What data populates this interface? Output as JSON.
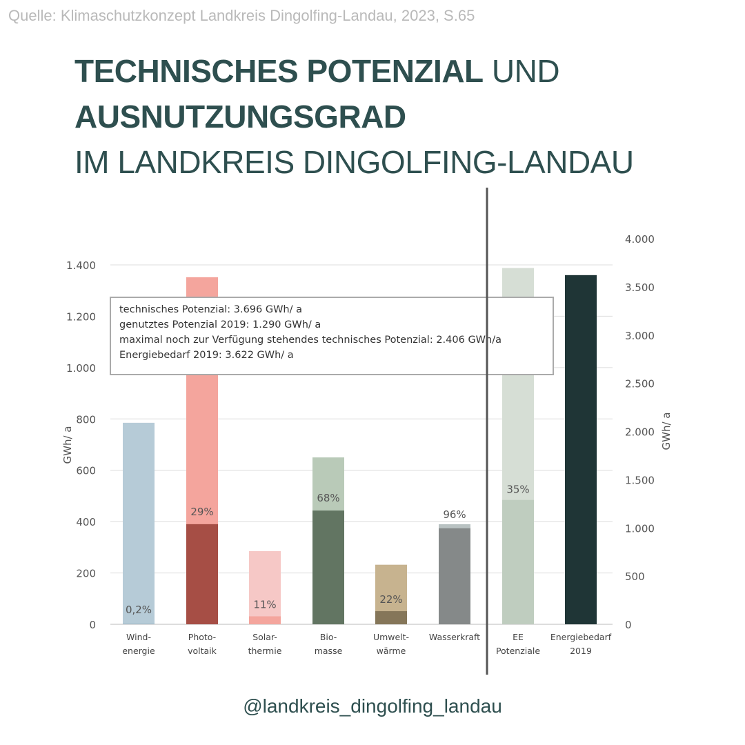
{
  "source": "Quelle: Klimaschutzkonzept Landkreis Dingolfing-Landau, 2023, S.65",
  "title": {
    "line1_bold": "TECHNISCHES POTENZIAL",
    "line1_regular": " UND",
    "line2_bold": "AUSNUTZUNGSGRAD",
    "line3_regular": "IM LANDKREIS DINGOLFING-LANDAU"
  },
  "handle": "@landkreis_dingolfing_landau",
  "colors": {
    "title": "#2e4f4f",
    "source": "#b9b9b9",
    "grid": "#dcdcdc",
    "axis_text": "#555555",
    "divider": "#555555"
  },
  "chart_data": {
    "type": "bar",
    "ylabel": "GWh/ a",
    "y2label": "GWh/ a",
    "ylim": [
      0,
      1400
    ],
    "yticks": [
      0,
      200,
      400,
      600,
      800,
      1000,
      1200,
      1400
    ],
    "ytick_labels": [
      "0",
      "200",
      "400",
      "600",
      "800",
      "1.000",
      "1.200",
      "1.400"
    ],
    "y2lim": [
      0,
      4000
    ],
    "y2ticks": [
      0,
      500,
      1000,
      1500,
      2000,
      2500,
      3000,
      3500,
      4000
    ],
    "y2tick_labels": [
      "0",
      "500",
      "1.000",
      "1.500",
      "2.000",
      "2.500",
      "3.000",
      "3.500",
      "4.000"
    ],
    "grid": true,
    "left_bars": [
      {
        "category": "Wind-\nenergie",
        "technical": 785,
        "used": 1.6,
        "label": "0,2%",
        "color_tech": "#b6cbd7",
        "color_used": "#8fa9bb"
      },
      {
        "category": "Photo-\nvoltaik",
        "technical": 1352,
        "used": 390,
        "label": "29%",
        "color_tech": "#f4a59d",
        "color_used": "#a64e45"
      },
      {
        "category": "Solar-\nthermie",
        "technical": 285,
        "used": 31,
        "label": "11%",
        "color_tech": "#f6c8c6",
        "color_used": "#f4a59d"
      },
      {
        "category": "Bio-\nmasse",
        "technical": 650,
        "used": 443,
        "label": "68%",
        "color_tech": "#b9cab8",
        "color_used": "#627562"
      },
      {
        "category": "Umwelt-\nwärme",
        "technical": 232,
        "used": 51,
        "label": "22%",
        "color_tech": "#c7b38f",
        "color_used": "#857659"
      },
      {
        "category": "Wasserkraft",
        "technical": 390,
        "used": 374,
        "label": "96%",
        "color_tech": "#b9c2c2",
        "color_used": "#858989"
      }
    ],
    "right_bars": [
      {
        "category": "EE\nPotenziale",
        "technical": 3696,
        "used": 1290,
        "label": "35%",
        "color_tech": "#d6ded5",
        "color_used": "#bfcdbf"
      },
      {
        "category": "Energiebedarf\n2019",
        "value": 3622,
        "color": "#1f3536"
      }
    ],
    "annotation": [
      "technisches Potenzial: 3.696 GWh/ a",
      "genutztes Potenzial 2019: 1.290 GWh/ a",
      "maximal noch zur Verfügung stehendes technisches Potenzial: 2.406 GWh/a",
      "Energiebedarf 2019: 3.622 GWh/ a"
    ]
  }
}
